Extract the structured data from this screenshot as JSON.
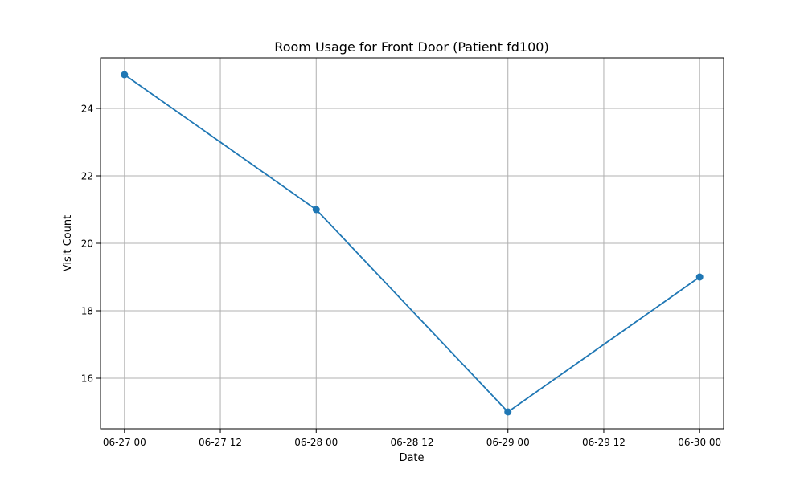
{
  "chart_data": {
    "type": "line",
    "title": "Room Usage for Front Door (Patient fd100)",
    "xlabel": "Date",
    "ylabel": "Visit Count",
    "x_tick_labels": [
      "06-27 00",
      "06-27 12",
      "06-28 00",
      "06-28 12",
      "06-29 00",
      "06-29 12",
      "06-30 00"
    ],
    "y_tick_labels": [
      "16",
      "18",
      "20",
      "22",
      "24"
    ],
    "xlim": [
      "06-26 21",
      "06-30 03"
    ],
    "ylim": [
      14.5,
      25.5
    ],
    "grid": true,
    "series": [
      {
        "x": [
          "06-27 00",
          "06-28 00",
          "06-29 00",
          "06-30 00"
        ],
        "values": [
          25,
          21,
          15,
          19
        ],
        "color": "#1f77b4",
        "marker": "circle"
      }
    ]
  }
}
